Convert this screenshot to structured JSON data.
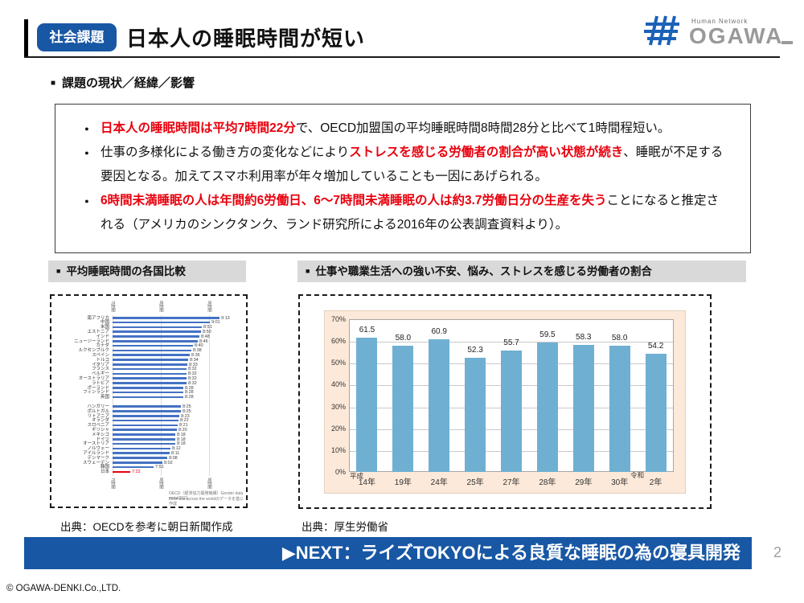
{
  "header": {
    "badge": "社会課題",
    "title": "日本人の睡眠時間が短い",
    "logo": {
      "tagline": "Human Network",
      "name": "OGAWA"
    }
  },
  "section_heading": {
    "marker": "■",
    "text": "課題の現状／経緯／影響"
  },
  "overview": {
    "bullets": [
      {
        "marker": "●",
        "segments": [
          {
            "text": "日本人の睡眠時間は平均7時間22分",
            "style": "red"
          },
          {
            "text": "で、OECD加盟国の平均睡眠時間8時間28分と比べて1時間程短い。",
            "style": "normal"
          }
        ]
      },
      {
        "marker": "●",
        "segments": [
          {
            "text": "仕事の多様化による働き方の変化などにより",
            "style": "normal"
          },
          {
            "text": "ストレスを感じる労働者の割合が高い状態が続き",
            "style": "red"
          },
          {
            "text": "、睡眠が不足する要因となる。加えてスマホ利用率が年々増加していることも一因にあげられる。",
            "style": "normal"
          }
        ]
      },
      {
        "marker": "●",
        "segments": [
          {
            "text": "6時間未満睡眠の人は年間約6労働日、6～7時間未満睡眠の人は約3.7労働日分の生産を失う",
            "style": "red"
          },
          {
            "text": "ことになると推定される（アメリカのシンクタンク、ランド研究所による2016年の公表調査資料より）。",
            "style": "normal"
          }
        ]
      }
    ]
  },
  "left_panel": {
    "marker": "■",
    "heading": "平均睡眠時間の各国比較",
    "source": "出典：OECDを参考に朝日新聞作成"
  },
  "right_panel": {
    "marker": "■",
    "heading": "仕事や職業生活への強い不安、悩み、ストレスを感じる労働者の割合",
    "source": "出典：厚生労働省"
  },
  "chart_data": [
    {
      "type": "bar",
      "orientation": "horizontal",
      "title": "平均睡眠時間の各国比較",
      "x_ticks": [
        "7時間",
        "8時間",
        "9時間"
      ],
      "x_tick_minutes": [
        420,
        480,
        540
      ],
      "xlim_minutes": [
        420,
        570
      ],
      "categories": [
        "南アフリカ",
        "中国",
        "米国",
        "エストニア",
        "インド",
        "ニュージーランド",
        "カナダ",
        "ルクセンブルク",
        "スペイン",
        "トルコ",
        "イタリア",
        "フランス",
        "ベルギー",
        "オーストラリア",
        "ラトビア",
        "ポーランド",
        "フィンランド",
        "英国",
        "ハンガリー",
        "ポルトガル",
        "リトアニア",
        "オランダ",
        "スロベニア",
        "ギリシャ",
        "メキシコ",
        "ドイツ",
        "オーストリア",
        "ノルウェー",
        "アイルランド",
        "デンマーク",
        "スウェーデン",
        "韓国",
        "日本"
      ],
      "value_labels": [
        "9:13",
        "9:01",
        "8:51",
        "8:50",
        "8:48",
        "8:46",
        "8:40",
        "8:38",
        "8:36",
        "8:34",
        "8:33",
        "8:32",
        "8:32",
        "8:32",
        "8:32",
        "8:28",
        "8:28",
        "8:28",
        "8:25",
        "8:25",
        "8:23",
        "8:22",
        "8:21",
        "8:20",
        "8:18",
        "8:18",
        "8:18",
        "8:12",
        "8:11",
        "8:08",
        "8:02",
        "7:51",
        "7:22"
      ],
      "values_minutes": [
        553,
        541,
        531,
        530,
        528,
        526,
        520,
        518,
        516,
        514,
        513,
        512,
        512,
        512,
        512,
        508,
        508,
        508,
        505,
        505,
        503,
        502,
        501,
        500,
        498,
        498,
        498,
        492,
        491,
        488,
        482,
        471,
        442
      ],
      "group_break_after": "英国",
      "highlight_category": "日本",
      "bar_color": "#4472c4",
      "highlight_color": "#e8000d",
      "note_lines": [
        "OECD（経済協力開発機構）Gender data portal2021",
        "Time use across the worldのデータを基に作成"
      ]
    },
    {
      "type": "bar",
      "title": "仕事や職業生活への強い不安、悩み、ストレスを感じる労働者の割合",
      "categories": [
        "14年",
        "19年",
        "24年",
        "25年",
        "27年",
        "28年",
        "29年",
        "30年",
        "2年"
      ],
      "values": [
        61.5,
        58.0,
        60.9,
        52.3,
        55.7,
        59.5,
        58.3,
        58.0,
        54.2
      ],
      "value_labels": [
        "61.5",
        "58.0",
        "60.9",
        "52.3",
        "55.7",
        "59.5",
        "58.3",
        "58.0",
        "54.2"
      ],
      "era_labels": [
        {
          "text": "平成",
          "before_category": "14年"
        },
        {
          "text": "令和",
          "before_category": "2年"
        }
      ],
      "y_ticks": [
        "0%",
        "10%",
        "20%",
        "30%",
        "40%",
        "50%",
        "60%",
        "70%"
      ],
      "ylim": [
        0,
        70
      ],
      "grid": true,
      "bar_color": "#6fb0d2",
      "plot_bg": "#ffffff",
      "panel_bg": "#fde9d9"
    }
  ],
  "banner": {
    "text": "▶NEXT：ライズTOKYOによる良質な睡眠の為の寝具開発"
  },
  "page_number": "2",
  "footer": "© OGAWA-DENKI.Co.,LTD."
}
